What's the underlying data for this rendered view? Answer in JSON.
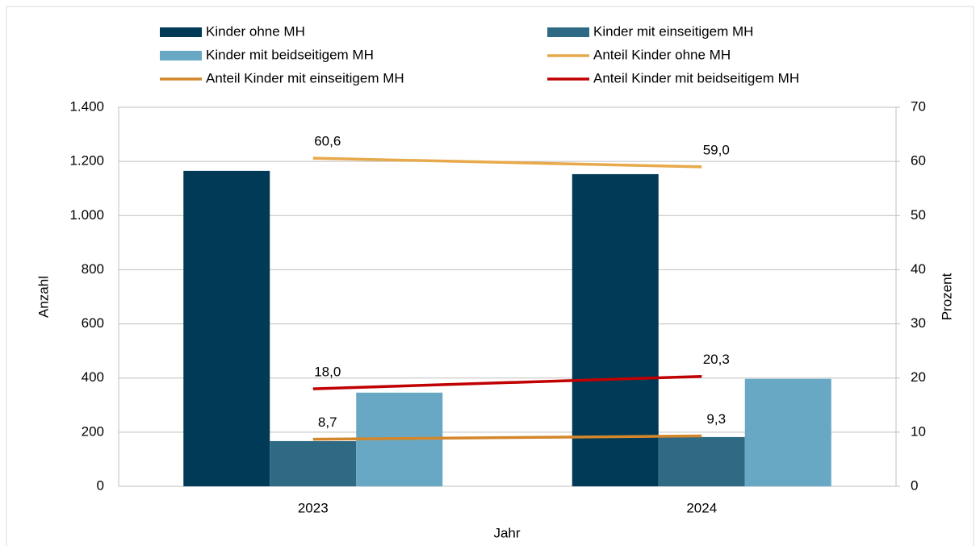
{
  "chart_data": {
    "type": "bar",
    "categories": [
      "2023",
      "2024"
    ],
    "x_label": "Jahr",
    "y_label": "Anzahl",
    "y2_label": "Prozent",
    "ylim": [
      0,
      1400
    ],
    "yticks": [
      0,
      200,
      400,
      600,
      800,
      {
        "value": 1000,
        "label": "1.000"
      },
      {
        "value": 1200,
        "label": "1.200"
      },
      {
        "value": 1400,
        "label": "1.400"
      }
    ],
    "y2lim": [
      0,
      70
    ],
    "y2ticks": [
      0,
      10,
      20,
      30,
      40,
      50,
      60,
      70
    ],
    "grid": true,
    "legend": "top",
    "series": [
      {
        "name": "Kinder ohne MH",
        "type": "bar",
        "color": "#003a57",
        "values": [
          1165,
          1153
        ]
      },
      {
        "name": "Kinder mit einseitigem MH",
        "type": "bar",
        "color": "#2e6a84",
        "values": [
          167,
          182
        ]
      },
      {
        "name": "Kinder mit beidseitigem MH",
        "type": "bar",
        "color": "#69a8c4",
        "values": [
          346,
          397
        ]
      },
      {
        "name": "Anteil Kinder ohne MH",
        "type": "line",
        "axis": "y2",
        "color": "#e8a94a",
        "values": [
          60.6,
          59.0
        ],
        "value_labels": [
          "60,6",
          "59,0"
        ]
      },
      {
        "name": "Anteil Kinder mit einseitigem MH",
        "type": "line",
        "axis": "y2",
        "color": "#d4862a",
        "values": [
          8.7,
          9.3
        ],
        "value_labels": [
          "8,7",
          "9,3"
        ]
      },
      {
        "name": "Anteil Kinder mit beidseitigem MH",
        "type": "line",
        "axis": "y2",
        "color": "#c00000",
        "values": [
          18.0,
          20.3
        ],
        "value_labels": [
          "18,0",
          "20,3"
        ]
      }
    ]
  }
}
